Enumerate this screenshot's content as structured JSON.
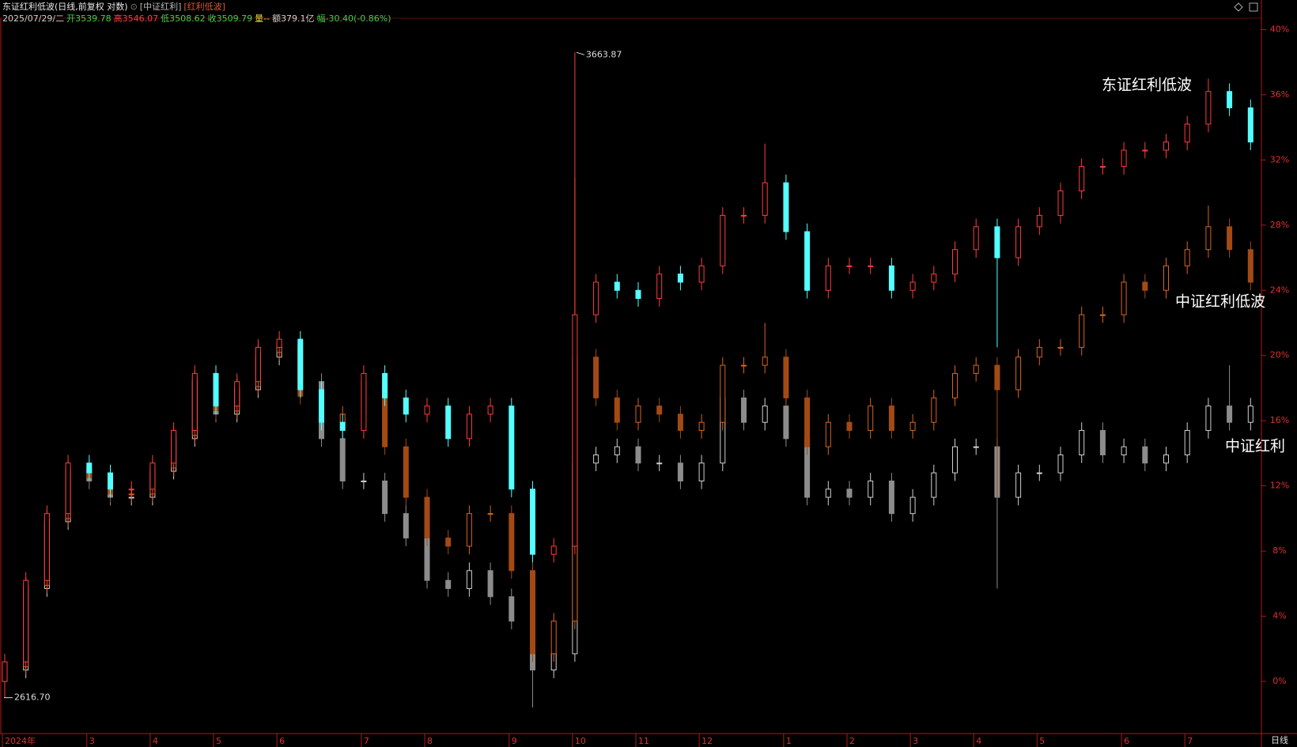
{
  "header": {
    "title": "东证红利低波(日线,前复权 对数)",
    "compare": [
      "[中证红利]",
      "[红利低波]"
    ],
    "date": "2025/07/29/二",
    "quote": [
      {
        "label": "开",
        "value": "3539.78",
        "color": "#3fd24a"
      },
      {
        "label": "高",
        "value": "3546.07",
        "color": "#ff3c3c"
      },
      {
        "label": "低",
        "value": "3508.62",
        "color": "#3fd24a"
      },
      {
        "label": "收",
        "value": "3509.79",
        "color": "#3fd24a"
      },
      {
        "label": "量",
        "value": "--",
        "color": "#e6d23c"
      },
      {
        "label": "额",
        "value": "379.1亿",
        "color": "#d0d0d0"
      },
      {
        "label": "幅",
        "value": "-30.40(-0.86%)",
        "color": "#3fd24a"
      }
    ]
  },
  "chart_data": {
    "type": "candlestick",
    "period": "日线",
    "ylim": [
      -3.2,
      40.7
    ],
    "yticks": [
      {
        "value": 0,
        "label": "0%"
      },
      {
        "value": 4,
        "label": "4%"
      },
      {
        "value": 8,
        "label": "8%"
      },
      {
        "value": 12,
        "label": "12%"
      },
      {
        "value": 16,
        "label": "16%"
      },
      {
        "value": 20,
        "label": "20%"
      },
      {
        "value": 24,
        "label": "24%"
      },
      {
        "value": 28,
        "label": "28%"
      },
      {
        "value": 32,
        "label": "32%"
      },
      {
        "value": 36,
        "label": "36%"
      },
      {
        "value": 40,
        "label": "40%"
      }
    ],
    "categories": [
      "2024年",
      null,
      null,
      null,
      "3",
      null,
      null,
      "4",
      null,
      null,
      "5",
      null,
      null,
      "6",
      null,
      null,
      null,
      "7",
      null,
      null,
      "8",
      null,
      null,
      null,
      "9",
      null,
      null,
      "10",
      null,
      null,
      "11",
      null,
      null,
      "12",
      null,
      null,
      null,
      "1",
      null,
      null,
      "2",
      null,
      null,
      "3",
      null,
      null,
      "4",
      null,
      null,
      "5",
      null,
      null,
      null,
      "6",
      null,
      null,
      "7",
      null,
      null,
      null
    ],
    "series": [
      {
        "name": "东证红利低波",
        "color_up": "#ff3c3c",
        "color_down": "#54ffff",
        "open": [
          0,
          1.2,
          6.2,
          10.3,
          13.4,
          12.8,
          11.8,
          11.8,
          13.4,
          15.4,
          18.9,
          16.9,
          18.4,
          20.5,
          21.0,
          17.9,
          15.9,
          15.4,
          18.9,
          17.4,
          16.4,
          16.9,
          14.9,
          16.4,
          16.9,
          11.8,
          7.8,
          8.3,
          22.5,
          24.5,
          24.0,
          23.5,
          25.0,
          24.5,
          25.5,
          28.6,
          28.6,
          30.6,
          27.6,
          24.0,
          25.5,
          25.5,
          25.5,
          24.0,
          24.5,
          25.0,
          26.5,
          27.9,
          26.0,
          27.9,
          28.6,
          30.1,
          31.6,
          31.6,
          32.6,
          32.6,
          33.1,
          34.2,
          36.2,
          35.2
        ],
        "high": [
          1.7,
          6.7,
          10.8,
          13.9,
          13.9,
          13.3,
          12.3,
          13.9,
          15.9,
          19.4,
          19.4,
          18.9,
          21.0,
          21.5,
          21.5,
          18.4,
          16.4,
          19.4,
          19.4,
          17.9,
          17.4,
          17.4,
          16.9,
          17.4,
          17.4,
          12.3,
          8.8,
          38.6,
          25.0,
          25.0,
          24.5,
          25.5,
          25.5,
          26.0,
          29.1,
          29.1,
          33.0,
          31.1,
          28.1,
          26.0,
          26.0,
          26.0,
          26.0,
          25.0,
          25.5,
          27.0,
          28.4,
          28.4,
          28.4,
          29.1,
          30.6,
          32.1,
          32.1,
          33.1,
          33.1,
          33.6,
          34.7,
          37.0,
          36.7,
          35.7
        ],
        "low": [
          -1.0,
          0.7,
          5.7,
          9.8,
          12.3,
          11.3,
          11.3,
          11.3,
          12.9,
          14.9,
          16.4,
          16.4,
          17.9,
          20.0,
          17.4,
          15.4,
          14.9,
          14.9,
          16.9,
          15.9,
          15.9,
          14.4,
          14.4,
          15.9,
          11.3,
          7.3,
          7.3,
          7.8,
          22.0,
          23.5,
          23.0,
          23.0,
          24.0,
          24.0,
          25.0,
          28.1,
          28.1,
          27.1,
          23.5,
          23.5,
          25.0,
          25.0,
          23.5,
          23.5,
          24.0,
          24.5,
          26.0,
          20.5,
          25.5,
          27.4,
          28.1,
          29.6,
          31.1,
          31.1,
          32.1,
          32.1,
          32.6,
          33.7,
          34.7,
          32.6
        ],
        "close": [
          1.2,
          6.2,
          10.3,
          13.4,
          12.8,
          11.8,
          11.8,
          13.4,
          15.4,
          18.9,
          16.9,
          18.4,
          20.5,
          21.0,
          17.9,
          15.9,
          15.4,
          18.9,
          17.4,
          16.4,
          16.9,
          14.9,
          16.4,
          16.9,
          11.8,
          7.8,
          8.3,
          22.5,
          24.5,
          24.0,
          23.5,
          25.0,
          24.5,
          25.5,
          28.6,
          28.6,
          30.6,
          27.6,
          24.0,
          25.5,
          25.5,
          25.5,
          24.0,
          24.5,
          25.0,
          26.5,
          27.9,
          26.0,
          27.9,
          28.6,
          30.1,
          31.6,
          31.6,
          32.6,
          32.6,
          33.1,
          34.2,
          36.2,
          35.2,
          33.1
        ]
      },
      {
        "name": "中证红利低波",
        "color_up": "#d8651f",
        "color_down": "#a34a14",
        "open": [
          0,
          0.9,
          5.9,
          10.0,
          13.1,
          12.5,
          11.5,
          11.5,
          13.1,
          15.1,
          18.6,
          16.6,
          18.1,
          20.2,
          20.7,
          17.5,
          15.9,
          16.4,
          18.4,
          14.4,
          11.3,
          8.8,
          8.3,
          10.3,
          10.3,
          6.8,
          1.7,
          3.7,
          19.9,
          17.4,
          15.9,
          16.9,
          16.4,
          15.4,
          15.9,
          19.4,
          19.4,
          19.9,
          17.4,
          14.4,
          15.9,
          15.4,
          16.9,
          15.4,
          15.9,
          17.4,
          18.9,
          19.4,
          17.9,
          19.9,
          20.5,
          20.5,
          22.5,
          22.5,
          24.5,
          24.0,
          25.5,
          26.5,
          27.9,
          26.5
        ],
        "high": [
          1.4,
          6.4,
          10.5,
          13.6,
          13.6,
          13.0,
          12.0,
          13.6,
          15.6,
          19.1,
          19.1,
          18.6,
          20.7,
          21.2,
          21.2,
          18.0,
          16.9,
          18.9,
          18.9,
          14.9,
          11.8,
          9.3,
          10.8,
          10.8,
          10.8,
          7.3,
          4.2,
          30.9,
          20.4,
          17.9,
          17.4,
          17.4,
          16.9,
          16.4,
          19.9,
          19.9,
          22.0,
          20.4,
          17.9,
          16.4,
          16.4,
          17.4,
          17.4,
          16.4,
          17.9,
          19.4,
          19.9,
          19.9,
          20.4,
          21.0,
          21.0,
          23.0,
          23.0,
          25.0,
          25.0,
          26.0,
          27.0,
          29.2,
          28.4,
          27.0
        ],
        "low": [
          -0.5,
          0.4,
          5.4,
          9.5,
          12.0,
          11.0,
          11.0,
          11.0,
          12.6,
          14.6,
          16.1,
          16.1,
          17.6,
          19.7,
          17.0,
          15.4,
          15.4,
          15.9,
          13.9,
          10.8,
          8.3,
          7.8,
          7.8,
          9.8,
          6.3,
          1.2,
          1.2,
          3.2,
          16.9,
          15.4,
          15.4,
          15.9,
          14.9,
          14.9,
          15.4,
          18.9,
          18.9,
          16.9,
          13.9,
          13.9,
          14.9,
          14.9,
          14.9,
          14.9,
          15.4,
          16.9,
          18.4,
          11.3,
          17.4,
          19.4,
          20.0,
          20.0,
          22.0,
          22.0,
          23.5,
          23.5,
          25.0,
          26.0,
          26.0,
          24.0
        ],
        "close": [
          0.9,
          5.9,
          10.0,
          13.1,
          12.5,
          11.5,
          11.5,
          13.1,
          15.1,
          18.6,
          16.6,
          18.1,
          20.2,
          20.7,
          17.5,
          15.9,
          16.4,
          18.4,
          14.4,
          11.3,
          8.8,
          8.3,
          10.3,
          10.3,
          6.8,
          1.7,
          3.7,
          19.9,
          17.4,
          15.9,
          16.9,
          16.4,
          15.4,
          15.9,
          19.4,
          19.4,
          19.9,
          17.4,
          14.4,
          15.9,
          15.4,
          16.9,
          15.4,
          15.9,
          17.4,
          18.9,
          19.4,
          17.9,
          19.9,
          20.5,
          20.5,
          22.5,
          22.5,
          24.5,
          24.0,
          25.5,
          26.5,
          27.9,
          26.5,
          24.5
        ]
      },
      {
        "name": "中证红利",
        "color_up": "#cfcfcf",
        "color_down": "#8c8c8c",
        "open": [
          0,
          0.7,
          5.7,
          9.8,
          12.9,
          12.3,
          11.3,
          11.3,
          12.9,
          14.9,
          18.4,
          16.4,
          17.9,
          19.9,
          20.5,
          18.4,
          14.9,
          12.3,
          12.3,
          10.3,
          8.8,
          6.2,
          5.7,
          6.8,
          5.2,
          3.7,
          0.7,
          1.7,
          13.4,
          13.9,
          14.4,
          13.4,
          13.4,
          12.3,
          13.4,
          17.4,
          15.9,
          16.9,
          14.9,
          11.3,
          11.8,
          11.3,
          12.3,
          10.3,
          11.3,
          12.8,
          14.4,
          14.4,
          11.3,
          12.8,
          12.8,
          13.9,
          15.4,
          13.9,
          14.4,
          13.4,
          13.9,
          15.4,
          16.9,
          15.9
        ],
        "high": [
          1.2,
          6.2,
          10.3,
          13.4,
          13.4,
          12.8,
          11.8,
          13.4,
          15.4,
          18.9,
          18.9,
          18.4,
          20.4,
          21.0,
          21.0,
          18.9,
          15.4,
          12.8,
          12.8,
          10.8,
          9.3,
          6.7,
          7.3,
          7.3,
          5.7,
          4.2,
          2.2,
          13.9,
          14.4,
          14.9,
          14.9,
          13.9,
          13.9,
          13.9,
          17.9,
          17.9,
          17.4,
          17.4,
          15.4,
          12.3,
          12.3,
          12.8,
          12.8,
          11.8,
          13.3,
          14.9,
          14.9,
          14.9,
          13.3,
          13.3,
          14.4,
          15.9,
          15.9,
          14.9,
          14.9,
          14.4,
          15.9,
          17.4,
          19.4,
          17.4
        ],
        "low": [
          -0.5,
          0.2,
          5.2,
          9.3,
          11.8,
          10.8,
          10.8,
          10.8,
          12.4,
          14.4,
          15.9,
          15.9,
          17.4,
          19.4,
          17.9,
          14.4,
          11.8,
          11.8,
          9.8,
          8.3,
          5.7,
          5.2,
          5.2,
          4.7,
          3.2,
          -1.6,
          0.2,
          1.2,
          12.9,
          13.4,
          12.9,
          12.9,
          11.8,
          11.8,
          12.9,
          15.4,
          15.4,
          14.4,
          10.8,
          10.8,
          10.8,
          10.8,
          9.8,
          9.8,
          10.8,
          12.3,
          13.9,
          5.7,
          10.8,
          12.3,
          12.3,
          13.4,
          13.4,
          13.4,
          12.9,
          12.9,
          13.4,
          14.9,
          15.4,
          15.4
        ],
        "close": [
          0.7,
          5.7,
          9.8,
          12.9,
          12.3,
          11.3,
          11.3,
          12.9,
          14.9,
          18.4,
          16.4,
          17.9,
          19.9,
          20.5,
          18.4,
          14.9,
          12.3,
          12.3,
          10.3,
          8.8,
          6.2,
          5.7,
          6.8,
          5.2,
          3.7,
          0.7,
          1.7,
          13.4,
          13.9,
          14.4,
          13.4,
          13.4,
          12.3,
          13.4,
          17.4,
          15.9,
          16.9,
          14.9,
          11.3,
          11.8,
          11.3,
          12.3,
          10.3,
          11.3,
          12.8,
          14.4,
          14.4,
          11.3,
          12.8,
          12.8,
          13.9,
          15.4,
          13.9,
          14.4,
          13.4,
          13.9,
          15.4,
          16.9,
          15.9,
          16.9
        ]
      }
    ],
    "annotations": [
      "3663.87",
      "2616.70"
    ]
  }
}
